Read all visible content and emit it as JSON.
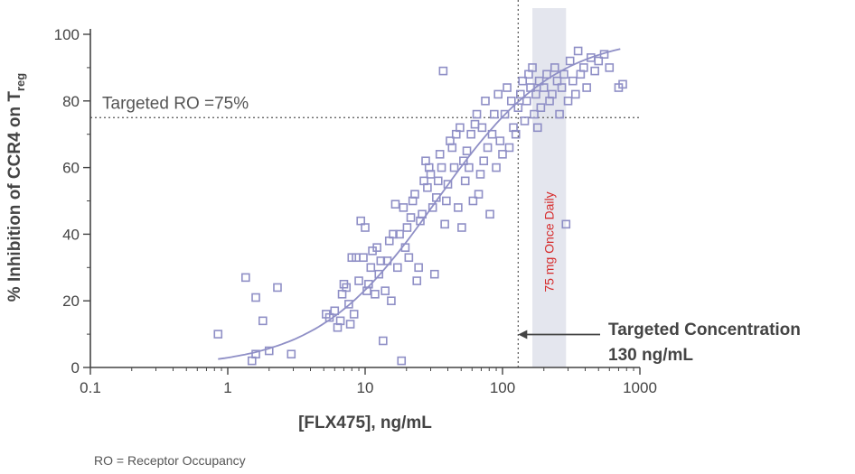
{
  "footnote": "RO = Receptor Occupancy",
  "chart_data": {
    "type": "scatter",
    "title": "",
    "xlabel": "[FLX475], ng/mL",
    "ylabel_main": "% Inhibition of  CCR4 on T",
    "ylabel_sub": "reg",
    "x_scale": "log",
    "xlim": [
      0.1,
      1000
    ],
    "ylim": [
      0,
      100
    ],
    "x_ticks": [
      0.1,
      1,
      10,
      100,
      1000
    ],
    "x_tick_labels": [
      "0.1",
      "1",
      "10",
      "100",
      "1000"
    ],
    "y_ticks": [
      0,
      20,
      40,
      60,
      80,
      100
    ],
    "y_tick_labels": [
      "0",
      "20",
      "40",
      "60",
      "80",
      "100"
    ],
    "marker_color": "#8f8fc6",
    "curve_color": "#8f8fc6",
    "band_color": "#e4e6ee",
    "grid": false,
    "reference_lines": [
      {
        "orientation": "horizontal",
        "value": 75,
        "style": "dotted",
        "label": "Targeted RO =75%"
      },
      {
        "orientation": "vertical",
        "value": 130,
        "style": "dotted"
      }
    ],
    "shaded_band": {
      "x_range": [
        165,
        290
      ],
      "label": "75 mg Once Daily",
      "label_color": "#d62b2b"
    },
    "annotation": {
      "line1": "Targeted Concentration",
      "line2": "130 ng/mL",
      "points_to_x": 130,
      "points_to_y": 8
    },
    "fit_curve": {
      "model": "Emax",
      "emax": 100,
      "ec50": 33,
      "hill": 1,
      "x_range": [
        0.85,
        720
      ]
    },
    "points": [
      [
        0.85,
        10
      ],
      [
        1.35,
        27
      ],
      [
        1.5,
        2
      ],
      [
        1.6,
        21
      ],
      [
        1.8,
        14
      ],
      [
        2.0,
        5
      ],
      [
        2.3,
        24
      ],
      [
        2.9,
        4
      ],
      [
        1.6,
        4
      ],
      [
        5.2,
        16
      ],
      [
        5.5,
        15
      ],
      [
        6.0,
        17
      ],
      [
        6.3,
        12
      ],
      [
        6.6,
        14
      ],
      [
        6.8,
        22
      ],
      [
        7.0,
        25
      ],
      [
        7.3,
        24
      ],
      [
        7.6,
        19
      ],
      [
        7.8,
        13
      ],
      [
        8.0,
        33
      ],
      [
        8.3,
        16
      ],
      [
        8.6,
        33
      ],
      [
        9.0,
        26
      ],
      [
        9.3,
        44
      ],
      [
        9.7,
        33
      ],
      [
        10.0,
        42
      ],
      [
        10.3,
        23
      ],
      [
        10.6,
        25
      ],
      [
        11.0,
        30
      ],
      [
        11.3,
        35
      ],
      [
        11.8,
        22
      ],
      [
        12.2,
        36
      ],
      [
        12.6,
        28
      ],
      [
        13.0,
        32
      ],
      [
        13.5,
        8
      ],
      [
        14.0,
        23
      ],
      [
        14.5,
        32
      ],
      [
        15.0,
        38
      ],
      [
        15.5,
        20
      ],
      [
        16.0,
        40
      ],
      [
        16.6,
        49
      ],
      [
        17.2,
        30
      ],
      [
        17.8,
        40
      ],
      [
        18.4,
        2
      ],
      [
        19.0,
        48
      ],
      [
        19.6,
        36
      ],
      [
        20.2,
        42
      ],
      [
        20.8,
        33
      ],
      [
        21.5,
        45
      ],
      [
        22.2,
        50
      ],
      [
        23.0,
        52
      ],
      [
        23.8,
        26
      ],
      [
        24.5,
        30
      ],
      [
        25.2,
        44
      ],
      [
        26.0,
        46
      ],
      [
        26.8,
        56
      ],
      [
        27.6,
        62
      ],
      [
        28.4,
        54
      ],
      [
        29.2,
        60
      ],
      [
        30.0,
        58
      ],
      [
        31.0,
        48
      ],
      [
        32.0,
        28
      ],
      [
        33.0,
        51
      ],
      [
        34.0,
        56
      ],
      [
        35.0,
        64
      ],
      [
        36.0,
        60
      ],
      [
        37.0,
        89
      ],
      [
        38.0,
        43
      ],
      [
        39.0,
        50
      ],
      [
        40.0,
        55
      ],
      [
        41.5,
        68
      ],
      [
        43.0,
        66
      ],
      [
        44.5,
        60
      ],
      [
        46.0,
        70
      ],
      [
        47.5,
        48
      ],
      [
        49.0,
        72
      ],
      [
        50.5,
        42
      ],
      [
        52.0,
        62
      ],
      [
        53.5,
        56
      ],
      [
        55.0,
        65
      ],
      [
        57.0,
        60
      ],
      [
        59.0,
        70
      ],
      [
        61.0,
        50
      ],
      [
        63.0,
        73
      ],
      [
        65.0,
        76
      ],
      [
        67.0,
        52
      ],
      [
        69.0,
        58
      ],
      [
        71.0,
        72
      ],
      [
        73.0,
        62
      ],
      [
        75.0,
        80
      ],
      [
        78.0,
        66
      ],
      [
        81.0,
        46
      ],
      [
        84.0,
        70
      ],
      [
        87.0,
        76
      ],
      [
        90.0,
        60
      ],
      [
        93.0,
        82
      ],
      [
        96.0,
        68
      ],
      [
        100.0,
        64
      ],
      [
        104.0,
        76
      ],
      [
        108.0,
        84
      ],
      [
        112.0,
        66
      ],
      [
        116.0,
        80
      ],
      [
        120.0,
        72
      ],
      [
        125.0,
        70
      ],
      [
        130.0,
        78
      ],
      [
        135.0,
        82
      ],
      [
        140.0,
        86
      ],
      [
        145.0,
        74
      ],
      [
        150.0,
        80
      ],
      [
        155.0,
        88
      ],
      [
        160.0,
        84
      ],
      [
        165.0,
        90
      ],
      [
        170.0,
        76
      ],
      [
        175.0,
        82
      ],
      [
        180.0,
        72
      ],
      [
        185.0,
        86
      ],
      [
        190.0,
        78
      ],
      [
        200.0,
        84
      ],
      [
        210.0,
        88
      ],
      [
        220.0,
        80
      ],
      [
        230.0,
        82
      ],
      [
        240.0,
        90
      ],
      [
        250.0,
        86
      ],
      [
        260.0,
        76
      ],
      [
        270.0,
        84
      ],
      [
        280.0,
        88
      ],
      [
        290.0,
        43
      ],
      [
        300.0,
        80
      ],
      [
        310.0,
        92
      ],
      [
        325.0,
        86
      ],
      [
        340.0,
        82
      ],
      [
        355.0,
        95
      ],
      [
        370.0,
        88
      ],
      [
        390.0,
        90
      ],
      [
        410.0,
        84
      ],
      [
        440.0,
        93
      ],
      [
        470.0,
        89
      ],
      [
        500.0,
        92
      ],
      [
        550.0,
        94
      ],
      [
        600.0,
        90
      ],
      [
        700.0,
        84
      ],
      [
        750.0,
        85
      ]
    ]
  }
}
